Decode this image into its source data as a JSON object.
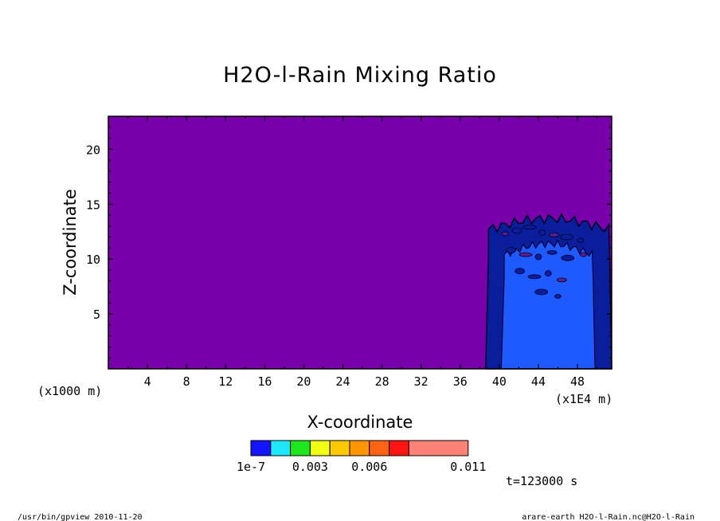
{
  "chart_data": {
    "type": "heatmap",
    "title": "H2O-l-Rain Mixing Ratio",
    "xlabel": "X-coordinate",
    "ylabel": "Z-coordinate",
    "x_unit_left": "(x1000 m)",
    "x_unit_right": "(x1E4 m)",
    "xlim": [
      0,
      51.5
    ],
    "ylim": [
      0,
      23
    ],
    "x_ticks": [
      4,
      8,
      12,
      16,
      20,
      24,
      28,
      32,
      36,
      40,
      44,
      48
    ],
    "y_ticks": [
      5,
      10,
      15,
      20
    ],
    "background_color": "#7800aa",
    "colorbar": {
      "colors": [
        "#1414ff",
        "#1ee6ff",
        "#1ee61e",
        "#f0ff14",
        "#ffc800",
        "#ff9600",
        "#ff6414",
        "#ff1414",
        "#ff8278"
      ],
      "tick_labels": [
        "1e-7",
        "0.003",
        "0.006",
        "0.011"
      ],
      "tick_values": [
        1e-07,
        0.003,
        0.006,
        0.011
      ]
    },
    "regions": [
      {
        "level": "1e-7",
        "color": "#0a1e9b",
        "x_range": [
          38.6,
          51.5
        ],
        "z_top": 13.8
      },
      {
        "level": "0.001",
        "color": "#1e5aff",
        "x_range": [
          40.2,
          49.8
        ],
        "z_top": 11.5
      }
    ],
    "time_label": "t=123000 s"
  },
  "footer": {
    "left": "/usr/bin/gpview  2010-11-20",
    "right": "arare-earth_H2O-l-Rain.nc@H2O-l-Rain"
  }
}
